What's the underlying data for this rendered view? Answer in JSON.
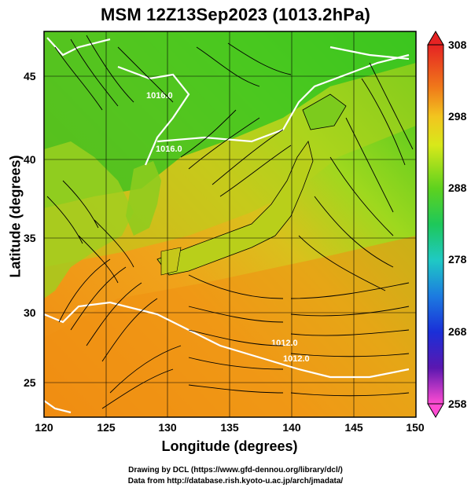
{
  "title": "MSM 12Z13Sep2023 (1013.2hPa)",
  "axes": {
    "xlabel": "Longitude (degrees)",
    "ylabel": "Latitude  (degrees)",
    "xticks": [
      "120",
      "125",
      "130",
      "135",
      "140",
      "145",
      "150"
    ],
    "yticks": [
      "45",
      "40",
      "35",
      "30",
      "25"
    ]
  },
  "colorbar": {
    "ticks": [
      "308",
      "298",
      "288",
      "278",
      "268",
      "258"
    ],
    "colors": [
      "#e52323",
      "#f07a1a",
      "#f2c51f",
      "#d8e81a",
      "#5ed21e",
      "#1ec85a",
      "#1fc9c4",
      "#1c7be0",
      "#1a2fd8",
      "#5a17b0",
      "#c818c8",
      "#ff4cd2"
    ]
  },
  "contour_labels": [
    "1016.0",
    "1016.0",
    "1012.0",
    "1012.0"
  ],
  "credits": [
    "Drawing by DCL (https://www.gfd-dennou.org/library/dcl/)",
    "Data from http://database.rish.kyoto-u.ac.jp/arch/jmadata/"
  ]
}
